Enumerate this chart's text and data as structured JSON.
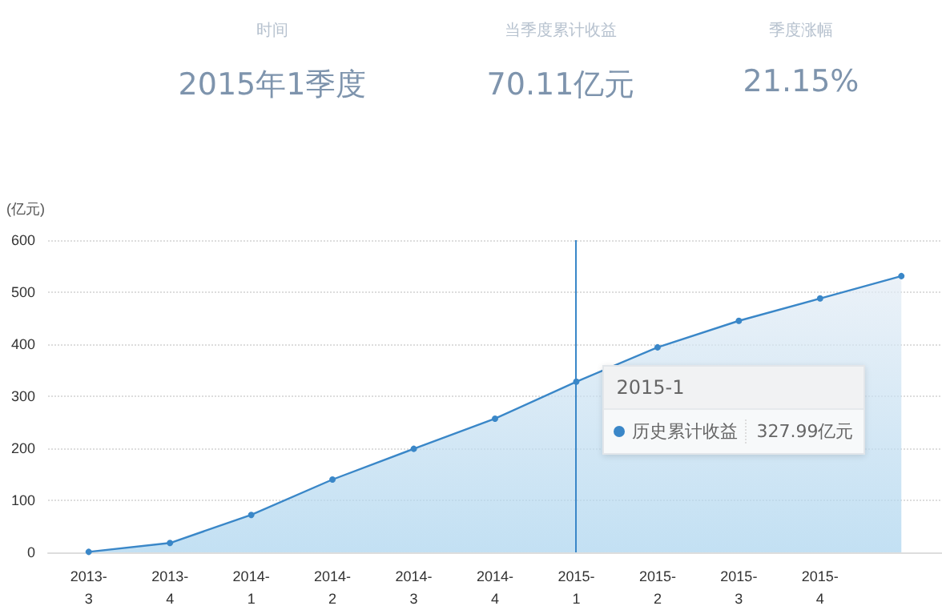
{
  "chart_data": {
    "type": "area",
    "ylabel": "(亿元)",
    "categories": [
      "2013-3",
      "2013-4",
      "2014-1",
      "2014-2",
      "2014-3",
      "2014-4",
      "2015-1",
      "2015-2",
      "2015-3",
      "2015-4",
      null
    ],
    "series": [
      {
        "name": "历史累计收益",
        "color": "#3a87c8",
        "values": [
          1,
          18,
          72,
          140,
          199,
          257,
          327.99,
          394,
          445,
          488,
          531
        ]
      }
    ],
    "ylim": [
      0,
      600
    ],
    "yticks": [
      0,
      100,
      200,
      300,
      400,
      500,
      600
    ],
    "grid": "y",
    "legend": "right",
    "marker": "circle",
    "line_style": "solid",
    "ref_lines": [
      {
        "axis": "x",
        "value": "2015-1",
        "label": "2015-1",
        "color": "#3a87c8"
      }
    ],
    "annotations": [
      "时间",
      "2015年1季度",
      "当季度累计收益",
      "70.11亿元",
      "季度涨幅",
      "21.15%",
      "327.99亿元"
    ]
  }
}
